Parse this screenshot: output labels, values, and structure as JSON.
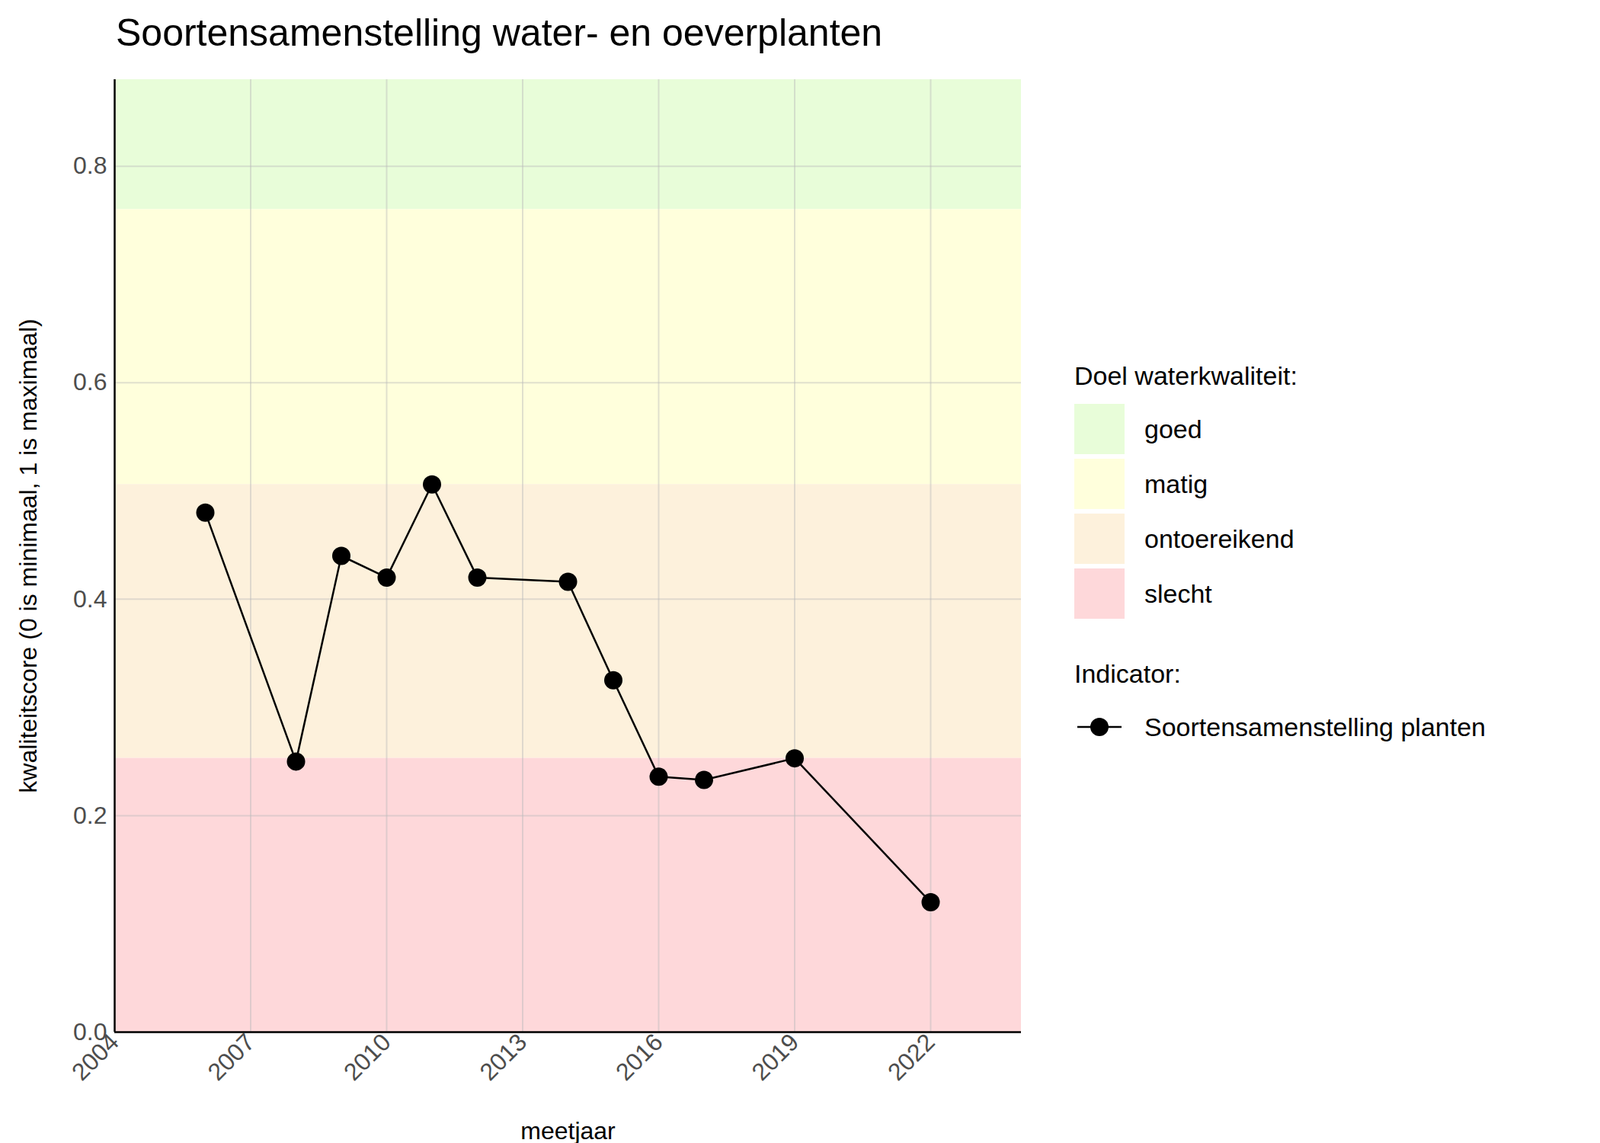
{
  "chart_data": {
    "type": "line",
    "title": "Soortensamenstelling water- en oeverplanten",
    "x_label": "meetjaar",
    "y_label": "kwaliteitscore (0 is minimaal, 1 is maximaal)",
    "x": [
      2006,
      2008,
      2009,
      2010,
      2011,
      2012,
      2014,
      2015,
      2016,
      2017,
      2019,
      2022
    ],
    "series": [
      {
        "name": "Soortensamenstelling planten",
        "color": "#000000",
        "marker": "circle",
        "line_style": "solid",
        "values": [
          0.48,
          0.25,
          0.44,
          0.42,
          0.506,
          0.42,
          0.416,
          0.325,
          0.236,
          0.233,
          0.253,
          0.12
        ]
      }
    ],
    "bands": [
      {
        "name": "goed",
        "color": "#e8fdd9",
        "from": 0.76,
        "to": 1
      },
      {
        "name": "matig",
        "color": "#ffffdc",
        "from": 0.506,
        "to": 0.76
      },
      {
        "name": "ontoereikend",
        "color": "#fdf1dc",
        "from": 0.253,
        "to": 0.506
      },
      {
        "name": "slecht",
        "color": "#fed8da",
        "from": 0,
        "to": 0.253
      }
    ],
    "band_legend_title": "Doel waterkwaliteit:",
    "series_legend_title": "Indicator:",
    "xlim": [
      2004,
      2024
    ],
    "xticks": [
      2004,
      2007,
      2010,
      2013,
      2016,
      2019,
      2022
    ],
    "ylim": [
      0,
      0.88
    ],
    "yticks": [
      {
        "value": 0,
        "label": "0.0"
      },
      0.2,
      0.4,
      0.6,
      0.8
    ],
    "grid": true,
    "legend": "right"
  }
}
